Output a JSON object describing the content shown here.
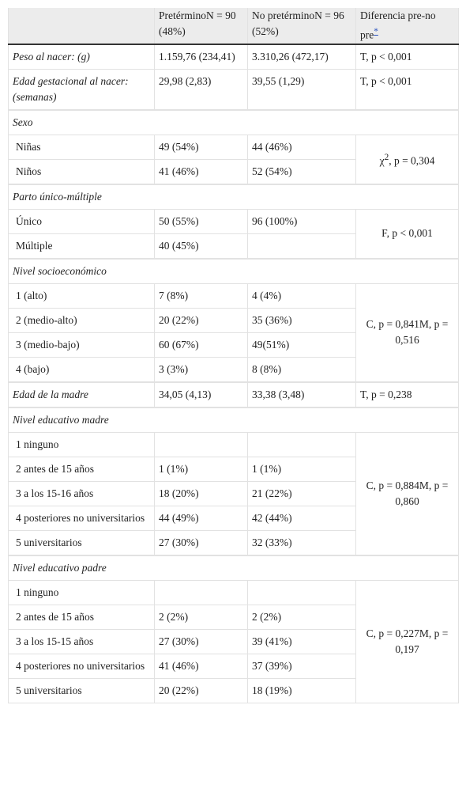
{
  "table": {
    "header": {
      "pre": "PretérminoN = 90 (48%)",
      "nopre": "No pretérminoN = 96 (52%)",
      "test": "Diferencia pre-no pre",
      "note": "*"
    },
    "blocks": [
      {
        "rows": [
          {
            "label": "Peso al nacer: (g)",
            "pre": "1.159,76 (234,41)",
            "nopre": "3.310,26 (472,17)",
            "test": "T, p < 0,001"
          },
          {
            "label": "Edad gestacional al nacer: (semanas)",
            "pre": "29,98 (2,83)",
            "nopre": "39,55 (1,29)",
            "test": "T, p < 0,001"
          }
        ]
      },
      {
        "heading": "Sexo",
        "test": {
          "symbol": "χ",
          "sup": "2",
          "rest": ", p = 0,304"
        },
        "rows": [
          {
            "label": "Niñas",
            "pre": "49 (54%)",
            "nopre": "44 (46%)"
          },
          {
            "label": "Niños",
            "pre": "41 (46%)",
            "nopre": "52 (54%)"
          }
        ]
      },
      {
        "heading": "Parto único-múltiple",
        "test": "F, p < 0,001",
        "rows": [
          {
            "label": "Único",
            "pre": "50 (55%)",
            "nopre": "96 (100%)"
          },
          {
            "label": "Múltiple",
            "pre": "40 (45%)"
          }
        ]
      },
      {
        "heading": "Nivel socioeconómico",
        "test": "C, p = 0,841M, p = 0,516",
        "rows": [
          {
            "label": "1 (alto)",
            "pre": "7 (8%)",
            "nopre": "4 (4%)"
          },
          {
            "label": "2 (medio-alto)",
            "pre": "20 (22%)",
            "nopre": "35 (36%)"
          },
          {
            "label": "3 (medio-bajo)",
            "pre": "60 (67%)",
            "nopre": "49(51%)"
          },
          {
            "label": "4 (bajo)",
            "pre": "3 (3%)",
            "nopre": "8 (8%)"
          }
        ]
      },
      {
        "rows": [
          {
            "label": "Edad de la madre",
            "pre": "34,05 (4,13)",
            "nopre": "33,38 (3,48)",
            "test": "T, p = 0,238"
          }
        ]
      },
      {
        "heading": "Nivel educativo madre",
        "test": "C, p = 0,884M, p = 0,860",
        "rows": [
          {
            "label": "1 ninguno"
          },
          {
            "label": "2 antes de 15 años",
            "pre": "1 (1%)",
            "nopre": "1 (1%)"
          },
          {
            "label": "3 a los 15-16 años",
            "pre": "18 (20%)",
            "nopre": "21 (22%)"
          },
          {
            "label": "4 posteriores no universitarios",
            "pre": "44 (49%)",
            "nopre": "42 (44%)"
          },
          {
            "label": "5 universitarios",
            "pre": "27 (30%)",
            "nopre": "32 (33%)"
          }
        ]
      },
      {
        "heading": "Nivel educativo padre",
        "test": "C, p = 0,227M, p = 0,197",
        "rows": [
          {
            "label": "1 ninguno"
          },
          {
            "label": "2 antes de 15 años",
            "pre": "2 (2%)",
            "nopre": "2 (2%)"
          },
          {
            "label": "3 a los 15-15 años",
            "pre": "27 (30%)",
            "nopre": "39 (41%)"
          },
          {
            "label": "4 posteriores no universitarios",
            "pre": "41 (46%)",
            "nopre": "37 (39%)"
          },
          {
            "label": "5 universitarios",
            "pre": "20 (22%)",
            "nopre": "18 (19%)"
          }
        ]
      }
    ]
  }
}
